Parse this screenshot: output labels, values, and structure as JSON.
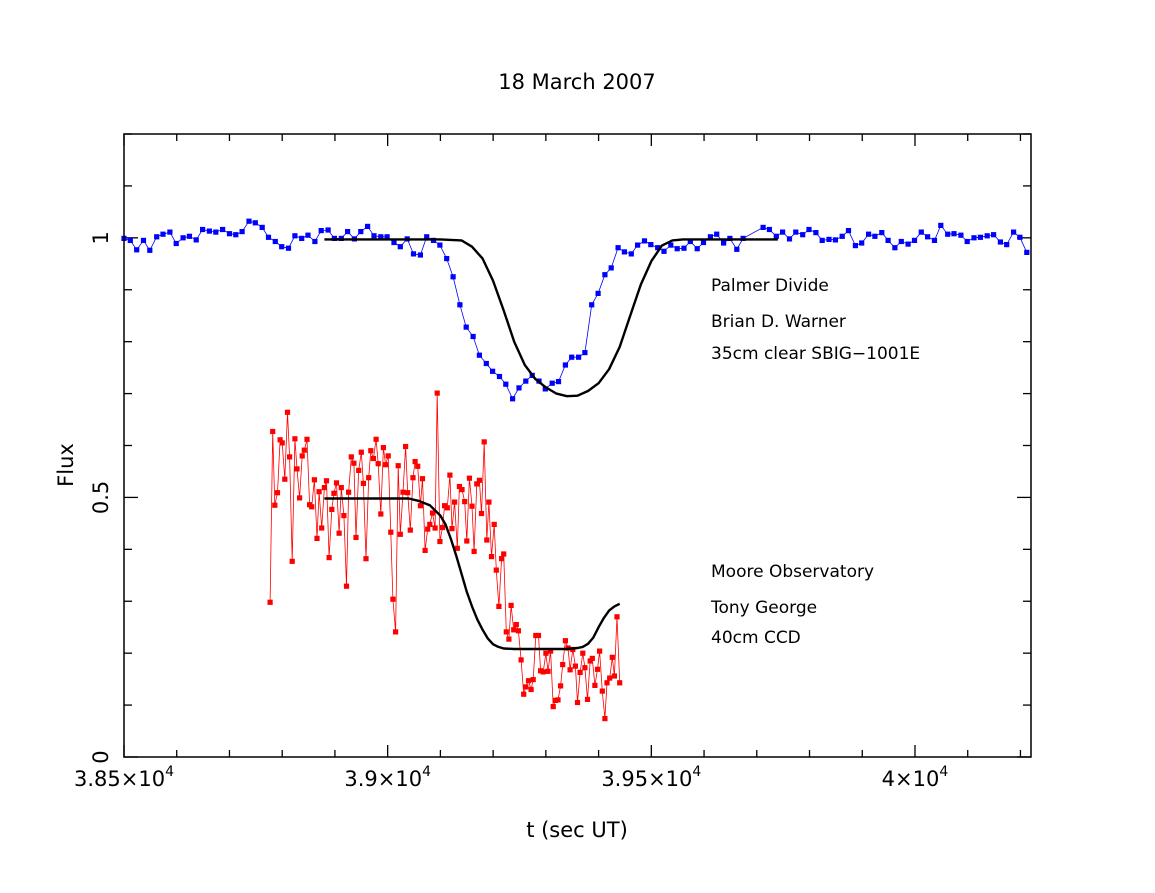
{
  "chart_data": {
    "type": "scatter",
    "title": "18 March 2007",
    "xlabel": "t (sec UT)",
    "ylabel": "Flux",
    "xlim": [
      38500,
      40220
    ],
    "ylim": [
      0,
      1.2
    ],
    "x_ticks": [
      {
        "value": 38500,
        "mant": "3.85",
        "exp": "4"
      },
      {
        "value": 39000,
        "mant": "3.9",
        "exp": "4"
      },
      {
        "value": 39500,
        "mant": "3.95",
        "exp": "4"
      },
      {
        "value": 40000,
        "mant": "4",
        "exp": "4"
      }
    ],
    "y_ticks": [
      {
        "value": 0,
        "label": "0"
      },
      {
        "value": 0.5,
        "label": "0.5"
      },
      {
        "value": 1,
        "label": "1"
      }
    ],
    "annotations": {
      "palmer": [
        "Palmer Divide",
        "Brian D. Warner",
        "35cm clear SBIG−1001E"
      ],
      "moore": [
        "Moore Observatory",
        "Tony George",
        "40cm CCD"
      ]
    },
    "series": [
      {
        "color": "#0000ff",
        "x": [
          38500,
          38512,
          38524,
          38537,
          38549,
          38562,
          38574,
          38587,
          38599,
          38612,
          38624,
          38637,
          38649,
          38662,
          38674,
          38687,
          38700,
          38712,
          38724,
          38737,
          38749,
          38762,
          38774,
          38787,
          38799,
          38812,
          38824,
          38837,
          38849,
          38862,
          38874,
          38887,
          38899,
          38912,
          38924,
          38937,
          38949,
          38962,
          38974,
          38987,
          38999,
          39012,
          39024,
          39037,
          39049,
          39062,
          39074,
          39087,
          39099,
          39112,
          39124,
          39137,
          39149,
          39162,
          39174,
          39187,
          39199,
          39212,
          39224,
          39237,
          39249,
          39262,
          39274,
          39287,
          39299,
          39312,
          39324,
          39337,
          39349,
          39362,
          39374,
          39387,
          39399,
          39412,
          39424,
          39437,
          39449,
          39462,
          39474,
          39487,
          39499,
          39512,
          39524,
          39537,
          39549,
          39562,
          39574,
          39587,
          39599,
          39612,
          39624,
          39637,
          39649,
          39662,
          39674,
          39712,
          39724,
          39737,
          39749,
          39762,
          39774,
          39787,
          39799,
          39812,
          39824,
          39837,
          39849,
          39862,
          39874,
          39887,
          39899,
          39912,
          39924,
          39937,
          39949,
          39962,
          39974,
          39987,
          39999,
          40012,
          40024,
          40037,
          40049,
          40062,
          40074,
          40087,
          40099,
          40112,
          40124,
          40137,
          40149,
          40162,
          40174,
          40187,
          40199,
          40212
        ],
        "y": [
          0.999,
          0.995,
          0.977,
          0.995,
          0.976,
          1.002,
          1.007,
          1.011,
          0.989,
          1.0,
          1.003,
          0.996,
          1.016,
          1.013,
          1.011,
          1.016,
          1.008,
          1.006,
          1.012,
          1.032,
          1.029,
          1.02,
          1.001,
          0.993,
          0.983,
          0.98,
          1.004,
          0.999,
          1.005,
          0.993,
          1.014,
          1.015,
          0.999,
          0.999,
          1.012,
          0.998,
          1.012,
          1.022,
          1.004,
          1.002,
          1.002,
          0.991,
          0.983,
          0.998,
          0.969,
          0.967,
          1.002,
          0.995,
          0.986,
          0.96,
          0.925,
          0.871,
          0.828,
          0.81,
          0.774,
          0.758,
          0.743,
          0.733,
          0.718,
          0.69,
          0.711,
          0.724,
          0.735,
          0.724,
          0.709,
          0.72,
          0.723,
          0.755,
          0.77,
          0.77,
          0.779,
          0.871,
          0.893,
          0.929,
          0.942,
          0.981,
          0.973,
          0.969,
          0.986,
          0.994,
          0.987,
          0.981,
          0.974,
          0.986,
          0.979,
          0.98,
          0.993,
          0.979,
          0.991,
          1.002,
          1.007,
          0.99,
          0.999,
          0.978,
          0.999,
          1.02,
          1.016,
          1.003,
          1.011,
          0.998,
          1.011,
          1.006,
          1.016,
          1.01,
          0.995,
          0.997,
          0.996,
          1.003,
          1.014,
          0.985,
          0.99,
          1.007,
          1.003,
          1.01,
          0.995,
          0.981,
          0.993,
          0.988,
          0.995,
          1.011,
          1.002,
          0.995,
          1.024,
          1.007,
          1.008,
          1.005,
          0.993,
          1.0,
          1.001,
          1.004,
          1.006,
          0.992,
          0.987,
          1.011,
          1.001,
          0.972
        ]
      },
      {
        "color": "#ff0000",
        "x": [
          38777,
          38782,
          38786,
          38791,
          38796,
          38800,
          38805,
          38810,
          38814,
          38819,
          38824,
          38828,
          38833,
          38838,
          38842,
          38847,
          38852,
          38856,
          38861,
          38866,
          38870,
          38875,
          38880,
          38884,
          38889,
          38894,
          38898,
          38903,
          38908,
          38912,
          38917,
          38922,
          38926,
          38931,
          38936,
          38940,
          38945,
          38950,
          38954,
          38959,
          38964,
          38968,
          38973,
          38978,
          38982,
          38987,
          38992,
          38996,
          39001,
          39006,
          39010,
          39015,
          39020,
          39024,
          39029,
          39034,
          39038,
          39043,
          39048,
          39052,
          39057,
          39062,
          39066,
          39071,
          39076,
          39080,
          39085,
          39090,
          39094,
          39099,
          39104,
          39108,
          39113,
          39118,
          39122,
          39127,
          39132,
          39136,
          39141,
          39146,
          39150,
          39155,
          39160,
          39164,
          39169,
          39174,
          39178,
          39183,
          39188,
          39192,
          39197,
          39202,
          39206,
          39211,
          39216,
          39220,
          39225,
          39230,
          39234,
          39239,
          39244,
          39248,
          39253,
          39258,
          39262,
          39267,
          39272,
          39276,
          39281,
          39286,
          39290,
          39295,
          39300,
          39304,
          39309,
          39314,
          39318,
          39323,
          39328,
          39332,
          39337,
          39342,
          39346,
          39351,
          39356,
          39360,
          39365,
          39370,
          39374,
          39379,
          39384,
          39388,
          39393,
          39398,
          39402,
          39407,
          39412,
          39416,
          39421,
          39426,
          39430,
          39435,
          39440
        ],
        "y": [
          0.298,
          0.627,
          0.485,
          0.509,
          0.611,
          0.605,
          0.535,
          0.664,
          0.578,
          0.377,
          0.613,
          0.555,
          0.499,
          0.58,
          0.591,
          0.612,
          0.486,
          0.482,
          0.534,
          0.421,
          0.511,
          0.441,
          0.519,
          0.532,
          0.384,
          0.477,
          0.508,
          0.528,
          0.431,
          0.519,
          0.465,
          0.329,
          0.51,
          0.578,
          0.566,
          0.423,
          0.552,
          0.587,
          0.527,
          0.382,
          0.538,
          0.59,
          0.575,
          0.612,
          0.565,
          0.468,
          0.596,
          0.563,
          0.58,
          0.433,
          0.304,
          0.241,
          0.561,
          0.429,
          0.51,
          0.598,
          0.509,
          0.437,
          0.538,
          0.569,
          0.56,
          0.484,
          0.536,
          0.398,
          0.439,
          0.448,
          0.47,
          0.441,
          0.701,
          0.415,
          0.442,
          0.484,
          0.48,
          0.543,
          0.44,
          0.491,
          0.402,
          0.521,
          0.515,
          0.492,
          0.416,
          0.537,
          0.483,
          0.396,
          0.526,
          0.533,
          0.469,
          0.607,
          0.418,
          0.491,
          0.386,
          0.448,
          0.36,
          0.29,
          0.382,
          0.391,
          0.241,
          0.227,
          0.292,
          0.245,
          0.255,
          0.243,
          0.187,
          0.121,
          0.135,
          0.147,
          0.13,
          0.149,
          0.234,
          0.234,
          0.166,
          0.164,
          0.2,
          0.165,
          0.204,
          0.097,
          0.109,
          0.11,
          0.137,
          0.178,
          0.224,
          0.21,
          0.168,
          0.207,
          0.175,
          0.105,
          0.163,
          0.2,
          0.172,
          0.111,
          0.185,
          0.19,
          0.138,
          0.169,
          0.204,
          0.127,
          0.074,
          0.143,
          0.152,
          0.192,
          0.156,
          0.27,
          0.143
        ]
      }
    ],
    "fits": [
      {
        "color": "#000000",
        "x": [
          38880,
          38900,
          38920,
          38940,
          38960,
          38980,
          39000,
          39020,
          39040,
          39060,
          39080,
          39100,
          39120,
          39140,
          39160,
          39180,
          39200,
          39220,
          39240,
          39260,
          39280,
          39300,
          39320,
          39340,
          39360,
          39380,
          39400,
          39420,
          39440,
          39460,
          39480,
          39500,
          39520,
          39540,
          39560,
          39580,
          39600,
          39620,
          39640,
          39660,
          39680,
          39700,
          39720,
          39740
        ],
        "y": [
          0.997,
          0.997,
          0.997,
          0.997,
          0.997,
          0.997,
          0.997,
          0.997,
          0.997,
          0.997,
          0.997,
          0.997,
          0.996,
          0.995,
          0.983,
          0.96,
          0.917,
          0.86,
          0.8,
          0.755,
          0.728,
          0.712,
          0.7,
          0.695,
          0.696,
          0.705,
          0.72,
          0.747,
          0.79,
          0.85,
          0.91,
          0.955,
          0.985,
          0.995,
          0.997,
          0.997,
          0.997,
          0.997,
          0.997,
          0.997,
          0.997,
          0.997,
          0.997,
          0.997
        ]
      },
      {
        "color": "#000000",
        "x": [
          38880,
          38900,
          38920,
          38940,
          38960,
          38980,
          39000,
          39020,
          39040,
          39060,
          39080,
          39100,
          39110,
          39120,
          39130,
          39140,
          39150,
          39160,
          39170,
          39180,
          39190,
          39200,
          39210,
          39220,
          39240,
          39260,
          39280,
          39300,
          39320,
          39340,
          39360,
          39370,
          39380,
          39390,
          39400,
          39410,
          39420,
          39430,
          39440
        ],
        "y": [
          0.498,
          0.498,
          0.498,
          0.498,
          0.498,
          0.498,
          0.498,
          0.498,
          0.498,
          0.493,
          0.485,
          0.465,
          0.447,
          0.42,
          0.388,
          0.353,
          0.318,
          0.29,
          0.265,
          0.245,
          0.228,
          0.217,
          0.212,
          0.209,
          0.208,
          0.208,
          0.208,
          0.208,
          0.208,
          0.208,
          0.21,
          0.212,
          0.218,
          0.23,
          0.25,
          0.268,
          0.282,
          0.29,
          0.295
        ]
      }
    ]
  }
}
